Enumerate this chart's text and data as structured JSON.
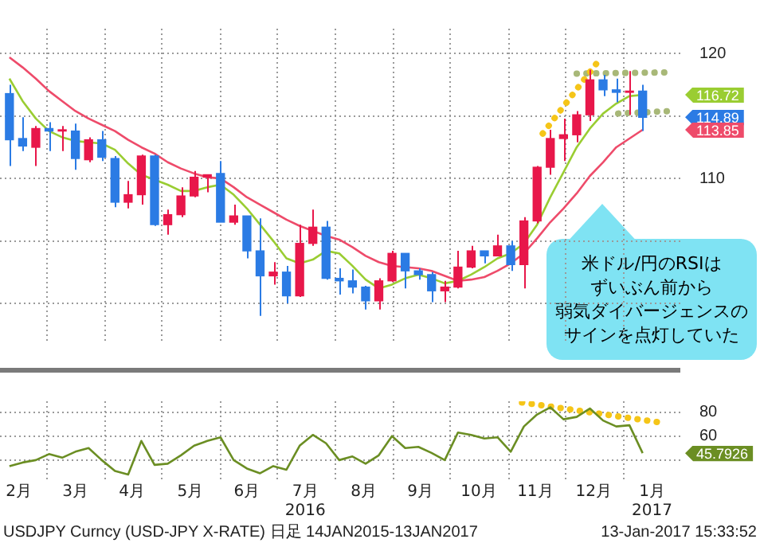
{
  "chart_data": [
    {
      "type": "candlestick",
      "x": [
        "2016-02-10",
        "2016-02-17",
        "2016-02-24",
        "2016-03-02",
        "2016-03-09",
        "2016-03-16",
        "2016-03-23",
        "2016-03-30",
        "2016-04-06",
        "2016-04-13",
        "2016-04-20",
        "2016-04-27",
        "2016-05-04",
        "2016-05-11",
        "2016-05-18",
        "2016-05-25",
        "2016-06-01",
        "2016-06-08",
        "2016-06-15",
        "2016-06-22",
        "2016-06-29",
        "2016-07-06",
        "2016-07-13",
        "2016-07-20",
        "2016-07-27",
        "2016-08-03",
        "2016-08-10",
        "2016-08-17",
        "2016-08-24",
        "2016-08-31",
        "2016-09-07",
        "2016-09-14",
        "2016-09-21",
        "2016-09-28",
        "2016-10-05",
        "2016-10-12",
        "2016-10-19",
        "2016-10-26",
        "2016-11-02",
        "2016-11-09",
        "2016-11-16",
        "2016-11-23",
        "2016-11-30",
        "2016-12-07",
        "2016-12-14",
        "2016-12-21",
        "2016-12-28",
        "2017-01-04",
        "2017-01-11"
      ],
      "ohlc": [
        [
          116.8,
          117.5,
          111.0,
          113.1
        ],
        [
          113.2,
          114.9,
          112.2,
          112.6
        ],
        [
          112.5,
          114.2,
          111.0,
          114.0
        ],
        [
          114.0,
          114.5,
          112.2,
          113.8
        ],
        [
          113.8,
          114.2,
          112.2,
          113.9
        ],
        [
          113.8,
          114.4,
          110.7,
          111.6
        ],
        [
          111.5,
          113.3,
          111.3,
          113.1
        ],
        [
          113.1,
          113.8,
          111.4,
          111.7
        ],
        [
          111.6,
          111.8,
          107.7,
          108.1
        ],
        [
          108.1,
          109.8,
          107.6,
          108.7
        ],
        [
          108.7,
          111.9,
          107.9,
          111.8
        ],
        [
          111.8,
          111.9,
          106.2,
          106.3
        ],
        [
          106.3,
          107.5,
          105.5,
          107.1
        ],
        [
          107.1,
          109.3,
          106.9,
          108.6
        ],
        [
          108.6,
          110.6,
          108.5,
          110.1
        ],
        [
          110.1,
          110.3,
          108.9,
          110.3
        ],
        [
          110.4,
          111.4,
          106.5,
          106.5
        ],
        [
          106.5,
          107.9,
          106.3,
          107.0
        ],
        [
          107.0,
          107.0,
          103.6,
          104.2
        ],
        [
          104.2,
          106.8,
          99.0,
          102.2
        ],
        [
          102.2,
          103.3,
          101.5,
          102.5
        ],
        [
          102.5,
          103.0,
          100.0,
          100.6
        ],
        [
          100.6,
          106.3,
          100.5,
          104.8
        ],
        [
          104.8,
          107.5,
          104.6,
          106.1
        ],
        [
          106.1,
          106.6,
          101.9,
          102.0
        ],
        [
          102.0,
          102.8,
          100.7,
          101.8
        ],
        [
          101.8,
          102.7,
          100.8,
          101.3
        ],
        [
          101.3,
          101.4,
          99.5,
          100.2
        ],
        [
          100.2,
          102.0,
          99.5,
          101.8
        ],
        [
          101.8,
          104.2,
          101.7,
          104.0
        ],
        [
          104.0,
          104.0,
          101.2,
          102.6
        ],
        [
          102.6,
          102.8,
          101.9,
          102.3
        ],
        [
          102.3,
          102.5,
          100.1,
          101.0
        ],
        [
          101.0,
          101.8,
          100.1,
          101.3
        ],
        [
          101.3,
          104.2,
          101.2,
          102.9
        ],
        [
          102.9,
          104.6,
          102.8,
          104.2
        ],
        [
          104.2,
          104.2,
          103.2,
          103.8
        ],
        [
          103.8,
          105.5,
          103.8,
          104.6
        ],
        [
          104.6,
          105.0,
          102.6,
          103.1
        ],
        [
          103.1,
          106.9,
          101.2,
          106.6
        ],
        [
          106.6,
          111.0,
          106.4,
          110.9
        ],
        [
          110.9,
          113.9,
          110.3,
          113.2
        ],
        [
          113.2,
          114.8,
          111.4,
          113.5
        ],
        [
          113.5,
          115.4,
          112.9,
          115.1
        ],
        [
          115.1,
          118.7,
          114.6,
          117.9
        ],
        [
          117.9,
          118.3,
          116.6,
          117.1
        ],
        [
          117.1,
          118.0,
          116.1,
          116.9
        ],
        [
          116.9,
          118.6,
          115.1,
          117.0
        ],
        [
          117.0,
          117.5,
          113.8,
          114.9
        ]
      ],
      "colors": [
        "#2b7be4",
        "#2b7be4",
        "#e8174a",
        "#2b7be4",
        "#e8174a",
        "#2b7be4",
        "#e8174a",
        "#2b7be4",
        "#2b7be4",
        "#e8174a",
        "#e8174a",
        "#2b7be4",
        "#e8174a",
        "#e8174a",
        "#e8174a",
        "#e8174a",
        "#2b7be4",
        "#e8174a",
        "#2b7be4",
        "#2b7be4",
        "#e8174a",
        "#2b7be4",
        "#e8174a",
        "#e8174a",
        "#2b7be4",
        "#2b7be4",
        "#2b7be4",
        "#2b7be4",
        "#e8174a",
        "#e8174a",
        "#2b7be4",
        "#2b7be4",
        "#2b7be4",
        "#e8174a",
        "#e8174a",
        "#e8174a",
        "#2b7be4",
        "#e8174a",
        "#2b7be4",
        "#e8174a",
        "#e8174a",
        "#e8174a",
        "#e8174a",
        "#e8174a",
        "#e8174a",
        "#2b7be4",
        "#2b7be4",
        "#e8174a",
        "#2b7be4"
      ],
      "series": [
        {
          "type": "line",
          "color": "#9acd32",
          "values": [
            118.0,
            116.2,
            114.8,
            113.8,
            113.3,
            113.0,
            112.9,
            112.8,
            112.3,
            111.2,
            110.3,
            109.9,
            109.5,
            109.0,
            109.0,
            109.3,
            109.5,
            108.7,
            107.6,
            106.3,
            105.0,
            103.6,
            103.2,
            103.5,
            104.2,
            104.0,
            103.0,
            101.9,
            101.2,
            101.5,
            102.0,
            102.3,
            102.0,
            101.6,
            101.8,
            102.3,
            102.9,
            103.6,
            104.0,
            104.8,
            106.3,
            108.5,
            110.5,
            112.5,
            114.0,
            115.2,
            116.0,
            116.6,
            116.7
          ]
        },
        {
          "type": "line",
          "color": "#ee4b6a",
          "values": [
            119.7,
            118.9,
            118.0,
            117.0,
            116.2,
            115.4,
            114.8,
            114.3,
            113.8,
            113.1,
            112.5,
            112.0,
            111.3,
            110.8,
            110.4,
            110.1,
            110.0,
            109.3,
            108.5,
            107.9,
            107.3,
            106.7,
            106.2,
            105.8,
            105.4,
            105.1,
            104.5,
            103.8,
            103.3,
            103.0,
            102.9,
            102.8,
            102.6,
            102.2,
            101.8,
            101.9,
            102.1,
            102.6,
            103.2,
            104.0,
            105.2,
            106.5,
            107.6,
            108.8,
            110.2,
            111.3,
            112.5,
            113.2,
            113.9
          ]
        },
        {
          "type": "line",
          "color": "#f5c518",
          "line_style": "dotted",
          "x": [
            "2016-11-19",
            "2016-12-20"
          ],
          "values": [
            113.6,
            119.7
          ]
        },
        {
          "type": "line",
          "color": "#a8b878",
          "line_style": "dotted",
          "x": [
            "2016-12-07",
            "2017-01-25"
          ],
          "values": [
            118.4,
            118.5
          ]
        },
        {
          "type": "line",
          "color": "#a8b878",
          "line_style": "dotted",
          "x": [
            "2016-12-29",
            "2017-01-26"
          ],
          "values": [
            115.2,
            115.4
          ]
        }
      ],
      "xlim": [
        "2016-02-05",
        "2017-01-31"
      ],
      "xticks": [
        {
          "value": "2016-03-01",
          "label": null
        },
        {
          "value": "2016-04-01",
          "label": null
        },
        {
          "value": "2016-05-01",
          "label": null
        },
        {
          "value": "2016-06-01",
          "label": null
        },
        {
          "value": "2016-07-01",
          "label": null
        },
        {
          "value": "2016-08-01",
          "label": null
        },
        {
          "value": "2016-09-01",
          "label": null
        },
        {
          "value": "2016-10-01",
          "label": null
        },
        {
          "value": "2016-11-01",
          "label": null
        },
        {
          "value": "2016-12-01",
          "label": null
        },
        {
          "value": "2017-01-01",
          "label": null
        }
      ],
      "ylim": [
        97,
        122
      ],
      "yticks": [
        {
          "value": 100,
          "label": null
        },
        {
          "value": 105,
          "label": null
        },
        110,
        {
          "value": 115,
          "label": null
        },
        120
      ],
      "grid": true,
      "tick_labels": "y",
      "annotations": [
        "116.72",
        "114.89",
        "113.85",
        "米ドル/円のRSIは",
        "ずいぶん前から",
        "弱気ダイバージェンスの",
        "サインを点灯していた"
      ]
    },
    {
      "type": "line",
      "x": [
        "2016-02-10",
        "2016-02-17",
        "2016-02-24",
        "2016-03-02",
        "2016-03-09",
        "2016-03-16",
        "2016-03-23",
        "2016-03-30",
        "2016-04-06",
        "2016-04-13",
        "2016-04-20",
        "2016-04-27",
        "2016-05-04",
        "2016-05-11",
        "2016-05-18",
        "2016-05-25",
        "2016-06-01",
        "2016-06-08",
        "2016-06-15",
        "2016-06-22",
        "2016-06-29",
        "2016-07-06",
        "2016-07-13",
        "2016-07-20",
        "2016-07-27",
        "2016-08-03",
        "2016-08-10",
        "2016-08-17",
        "2016-08-24",
        "2016-08-31",
        "2016-09-07",
        "2016-09-14",
        "2016-09-21",
        "2016-09-28",
        "2016-10-05",
        "2016-10-12",
        "2016-10-19",
        "2016-10-26",
        "2016-11-02",
        "2016-11-09",
        "2016-11-16",
        "2016-11-23",
        "2016-11-30",
        "2016-12-07",
        "2016-12-14",
        "2016-12-21",
        "2016-12-28",
        "2017-01-04",
        "2017-01-11"
      ],
      "series": [
        {
          "type": "line",
          "color": "#6b8e23",
          "values": [
            35,
            38,
            40,
            45,
            42,
            47,
            50,
            40,
            31,
            28,
            56,
            36,
            37,
            44,
            52,
            56,
            59,
            40,
            33,
            29,
            35,
            32,
            52,
            61,
            54,
            40,
            43,
            37,
            44,
            60,
            50,
            51,
            46,
            40,
            63,
            61,
            58,
            59,
            47,
            68,
            78,
            84,
            74,
            76,
            83,
            73,
            68,
            69,
            45.8
          ]
        },
        {
          "type": "line",
          "color": "#f5c518",
          "line_style": "dotted",
          "x": [
            "2016-11-08",
            "2017-01-22"
          ],
          "values": [
            88,
            71
          ]
        }
      ],
      "xlim": [
        "2016-02-05",
        "2017-01-31"
      ],
      "xticks": [
        {
          "value": "2016-02-15",
          "label": "2月"
        },
        {
          "value": "2016-03-01",
          "label": null
        },
        {
          "value": "2016-03-16",
          "label": "3月"
        },
        {
          "value": "2016-04-01",
          "label": null
        },
        {
          "value": "2016-04-15",
          "label": "4月"
        },
        {
          "value": "2016-05-01",
          "label": null
        },
        {
          "value": "2016-05-16",
          "label": "5月"
        },
        {
          "value": "2016-06-01",
          "label": null
        },
        {
          "value": "2016-06-15",
          "label": "6月"
        },
        {
          "value": "2016-07-01",
          "label": null
        },
        {
          "value": "2016-07-16",
          "label": "7月\n2016"
        },
        {
          "value": "2016-08-01",
          "label": null
        },
        {
          "value": "2016-08-16",
          "label": "8月"
        },
        {
          "value": "2016-09-01",
          "label": null
        },
        {
          "value": "2016-09-15",
          "label": "9月"
        },
        {
          "value": "2016-10-01",
          "label": null
        },
        {
          "value": "2016-10-16",
          "label": "10月"
        },
        {
          "value": "2016-11-01",
          "label": null
        },
        {
          "value": "2016-11-15",
          "label": "11月"
        },
        {
          "value": "2016-12-01",
          "label": null
        },
        {
          "value": "2016-12-16",
          "label": "12月"
        },
        {
          "value": "2017-01-01",
          "label": null
        },
        {
          "value": "2017-01-16",
          "label": "1月\n2017"
        }
      ],
      "ylim": [
        24,
        89
      ],
      "yticks": [
        {
          "value": 40,
          "label": null
        },
        60,
        80
      ],
      "grid": true,
      "annotations": [
        "45.7926",
        "USDJPY Curncy (USD-JPY X-RATE) 日足 14JAN2015-13JAN2017",
        "13-Jan-2017 15:33:52"
      ]
    }
  ]
}
